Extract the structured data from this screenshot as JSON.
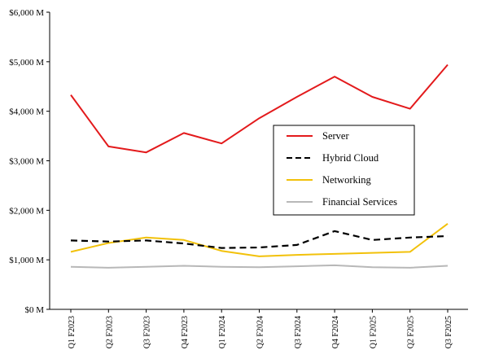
{
  "chart_data": {
    "type": "line",
    "title": "",
    "xlabel": "",
    "ylabel": "",
    "categories": [
      "Q1 F2023",
      "Q2 F2023",
      "Q3 F2023",
      "Q4 F2023",
      "Q1 F2024",
      "Q2 F2024",
      "Q3 F2024",
      "Q4 F2024",
      "Q1 F2025",
      "Q2 F2025",
      "Q3 F2025"
    ],
    "ylim": [
      0,
      6000
    ],
    "yticks": [
      0,
      1000,
      2000,
      3000,
      4000,
      5000,
      6000
    ],
    "ytick_labels": [
      "$0 M",
      "$1,000 M",
      "$2,000 M",
      "$3,000 M",
      "$4,000 M",
      "$5,000 M",
      "$6,000 M"
    ],
    "grid": false,
    "legend_position": "center-right",
    "series": [
      {
        "name": "Server",
        "color": "#e31a1c",
        "dash": "solid",
        "values": [
          4330,
          3290,
          3170,
          3560,
          3350,
          3860,
          4290,
          4700,
          4290,
          4050,
          4940
        ]
      },
      {
        "name": "Hybrid Cloud",
        "color": "#000000",
        "dash": "dashed",
        "values": [
          1390,
          1370,
          1390,
          1330,
          1240,
          1250,
          1300,
          1580,
          1400,
          1450,
          1480
        ]
      },
      {
        "name": "Networking",
        "color": "#f2c10a",
        "dash": "solid",
        "values": [
          1160,
          1340,
          1450,
          1400,
          1180,
          1070,
          1100,
          1120,
          1140,
          1160,
          1730
        ]
      },
      {
        "name": "Financial Services",
        "color": "#b8b8b8",
        "dash": "solid",
        "values": [
          860,
          840,
          860,
          880,
          860,
          850,
          870,
          890,
          850,
          840,
          880
        ]
      }
    ]
  }
}
